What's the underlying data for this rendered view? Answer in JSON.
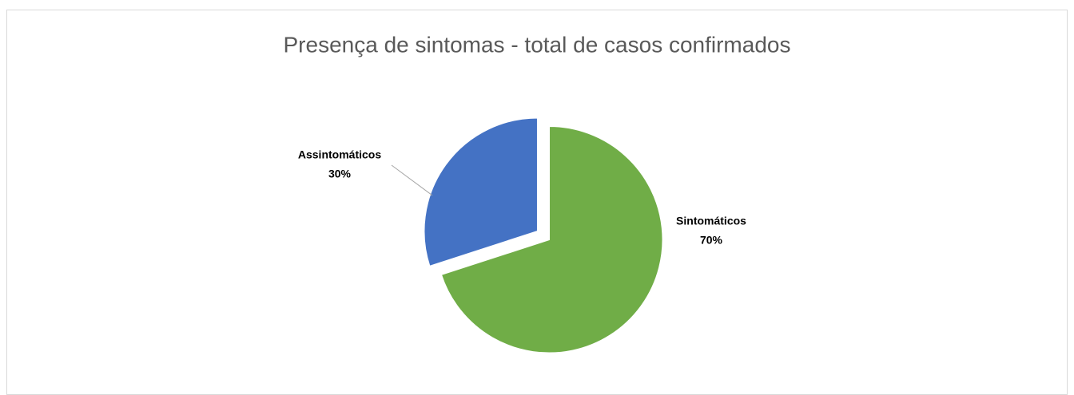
{
  "chart_data": {
    "type": "pie",
    "title": "Presença de sintomas - total de casos confirmados",
    "categories": [
      "Sintomáticos",
      "Assintomáticos"
    ],
    "values": [
      70,
      30
    ],
    "value_labels": [
      "70%",
      "30%"
    ],
    "colors": [
      "#70ad47",
      "#4472c4"
    ]
  }
}
